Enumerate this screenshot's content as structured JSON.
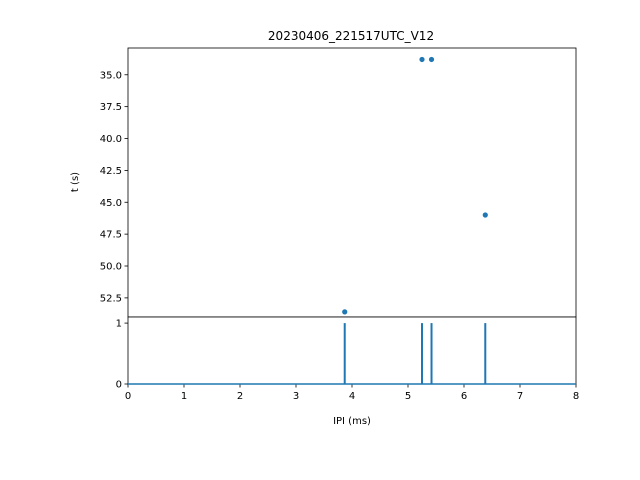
{
  "figure": {
    "title": "20230406_221517UTC_V12",
    "accent_color": "#1f77b4"
  },
  "chart_data": [
    {
      "type": "scatter",
      "title": "20230406_221517UTC_V12",
      "xlabel": "",
      "ylabel": "t (s)",
      "xlim": [
        0,
        8
      ],
      "ylim": [
        54.0,
        32.9
      ],
      "y_inverted": true,
      "yticks": [
        35.0,
        37.5,
        40.0,
        42.5,
        45.0,
        47.5,
        50.0,
        52.5
      ],
      "ytick_labels": [
        "35.0",
        "37.5",
        "40.0",
        "42.5",
        "45.0",
        "47.5",
        "50.0",
        "52.5"
      ],
      "points": [
        {
          "x": 5.25,
          "y": 33.8
        },
        {
          "x": 5.42,
          "y": 33.8
        },
        {
          "x": 6.38,
          "y": 46.0
        },
        {
          "x": 3.87,
          "y": 53.6
        }
      ],
      "color": "#1f77b4",
      "grid": false
    },
    {
      "type": "line",
      "xlabel": "IPI (ms)",
      "ylabel": "",
      "xlim": [
        0,
        8
      ],
      "ylim": [
        0,
        1.1
      ],
      "xticks": [
        0,
        1,
        2,
        3,
        4,
        5,
        6,
        7,
        8
      ],
      "xtick_labels": [
        "0",
        "1",
        "2",
        "3",
        "4",
        "5",
        "6",
        "7",
        "8"
      ],
      "yticks": [
        0,
        1
      ],
      "ytick_labels": [
        "0",
        "1"
      ],
      "baseline": 0,
      "spikes": [
        {
          "x": 3.87,
          "value": 1
        },
        {
          "x": 5.25,
          "value": 1
        },
        {
          "x": 5.42,
          "value": 1
        },
        {
          "x": 6.38,
          "value": 1
        }
      ],
      "color": "#1f77b4",
      "grid": false
    }
  ]
}
